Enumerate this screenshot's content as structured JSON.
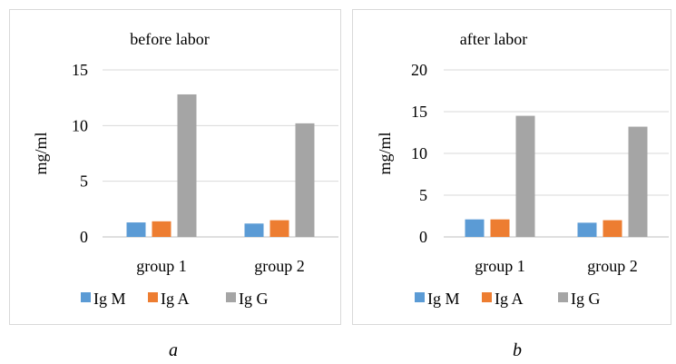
{
  "colors": {
    "Ig M": "#5b9bd5",
    "Ig A": "#ed7d31",
    "Ig G": "#a5a5a5"
  },
  "captions": {
    "a": "a",
    "b": "b"
  },
  "chart_data": [
    {
      "type": "bar",
      "title": "before labor",
      "ylabel": "mg/ml",
      "xlabel": "",
      "categories": [
        "group 1",
        "group 2"
      ],
      "series": [
        {
          "name": "Ig M",
          "values": [
            1.3,
            1.2
          ]
        },
        {
          "name": "Ig A",
          "values": [
            1.4,
            1.5
          ]
        },
        {
          "name": "Ig G",
          "values": [
            12.8,
            10.2
          ]
        }
      ],
      "ylim": [
        0,
        15
      ],
      "yticks": [
        0,
        5,
        10,
        15
      ],
      "grid": true,
      "legend": "bottom"
    },
    {
      "type": "bar",
      "title": "after labor",
      "ylabel": "mg/ml",
      "xlabel": "",
      "categories": [
        "group 1",
        "group 2"
      ],
      "series": [
        {
          "name": "Ig M",
          "values": [
            2.1,
            1.7
          ]
        },
        {
          "name": "Ig A",
          "values": [
            2.1,
            2.0
          ]
        },
        {
          "name": "Ig G",
          "values": [
            14.5,
            13.2
          ]
        }
      ],
      "ylim": [
        0,
        20
      ],
      "yticks": [
        0,
        5,
        10,
        15,
        20
      ],
      "grid": true,
      "legend": "bottom"
    }
  ]
}
